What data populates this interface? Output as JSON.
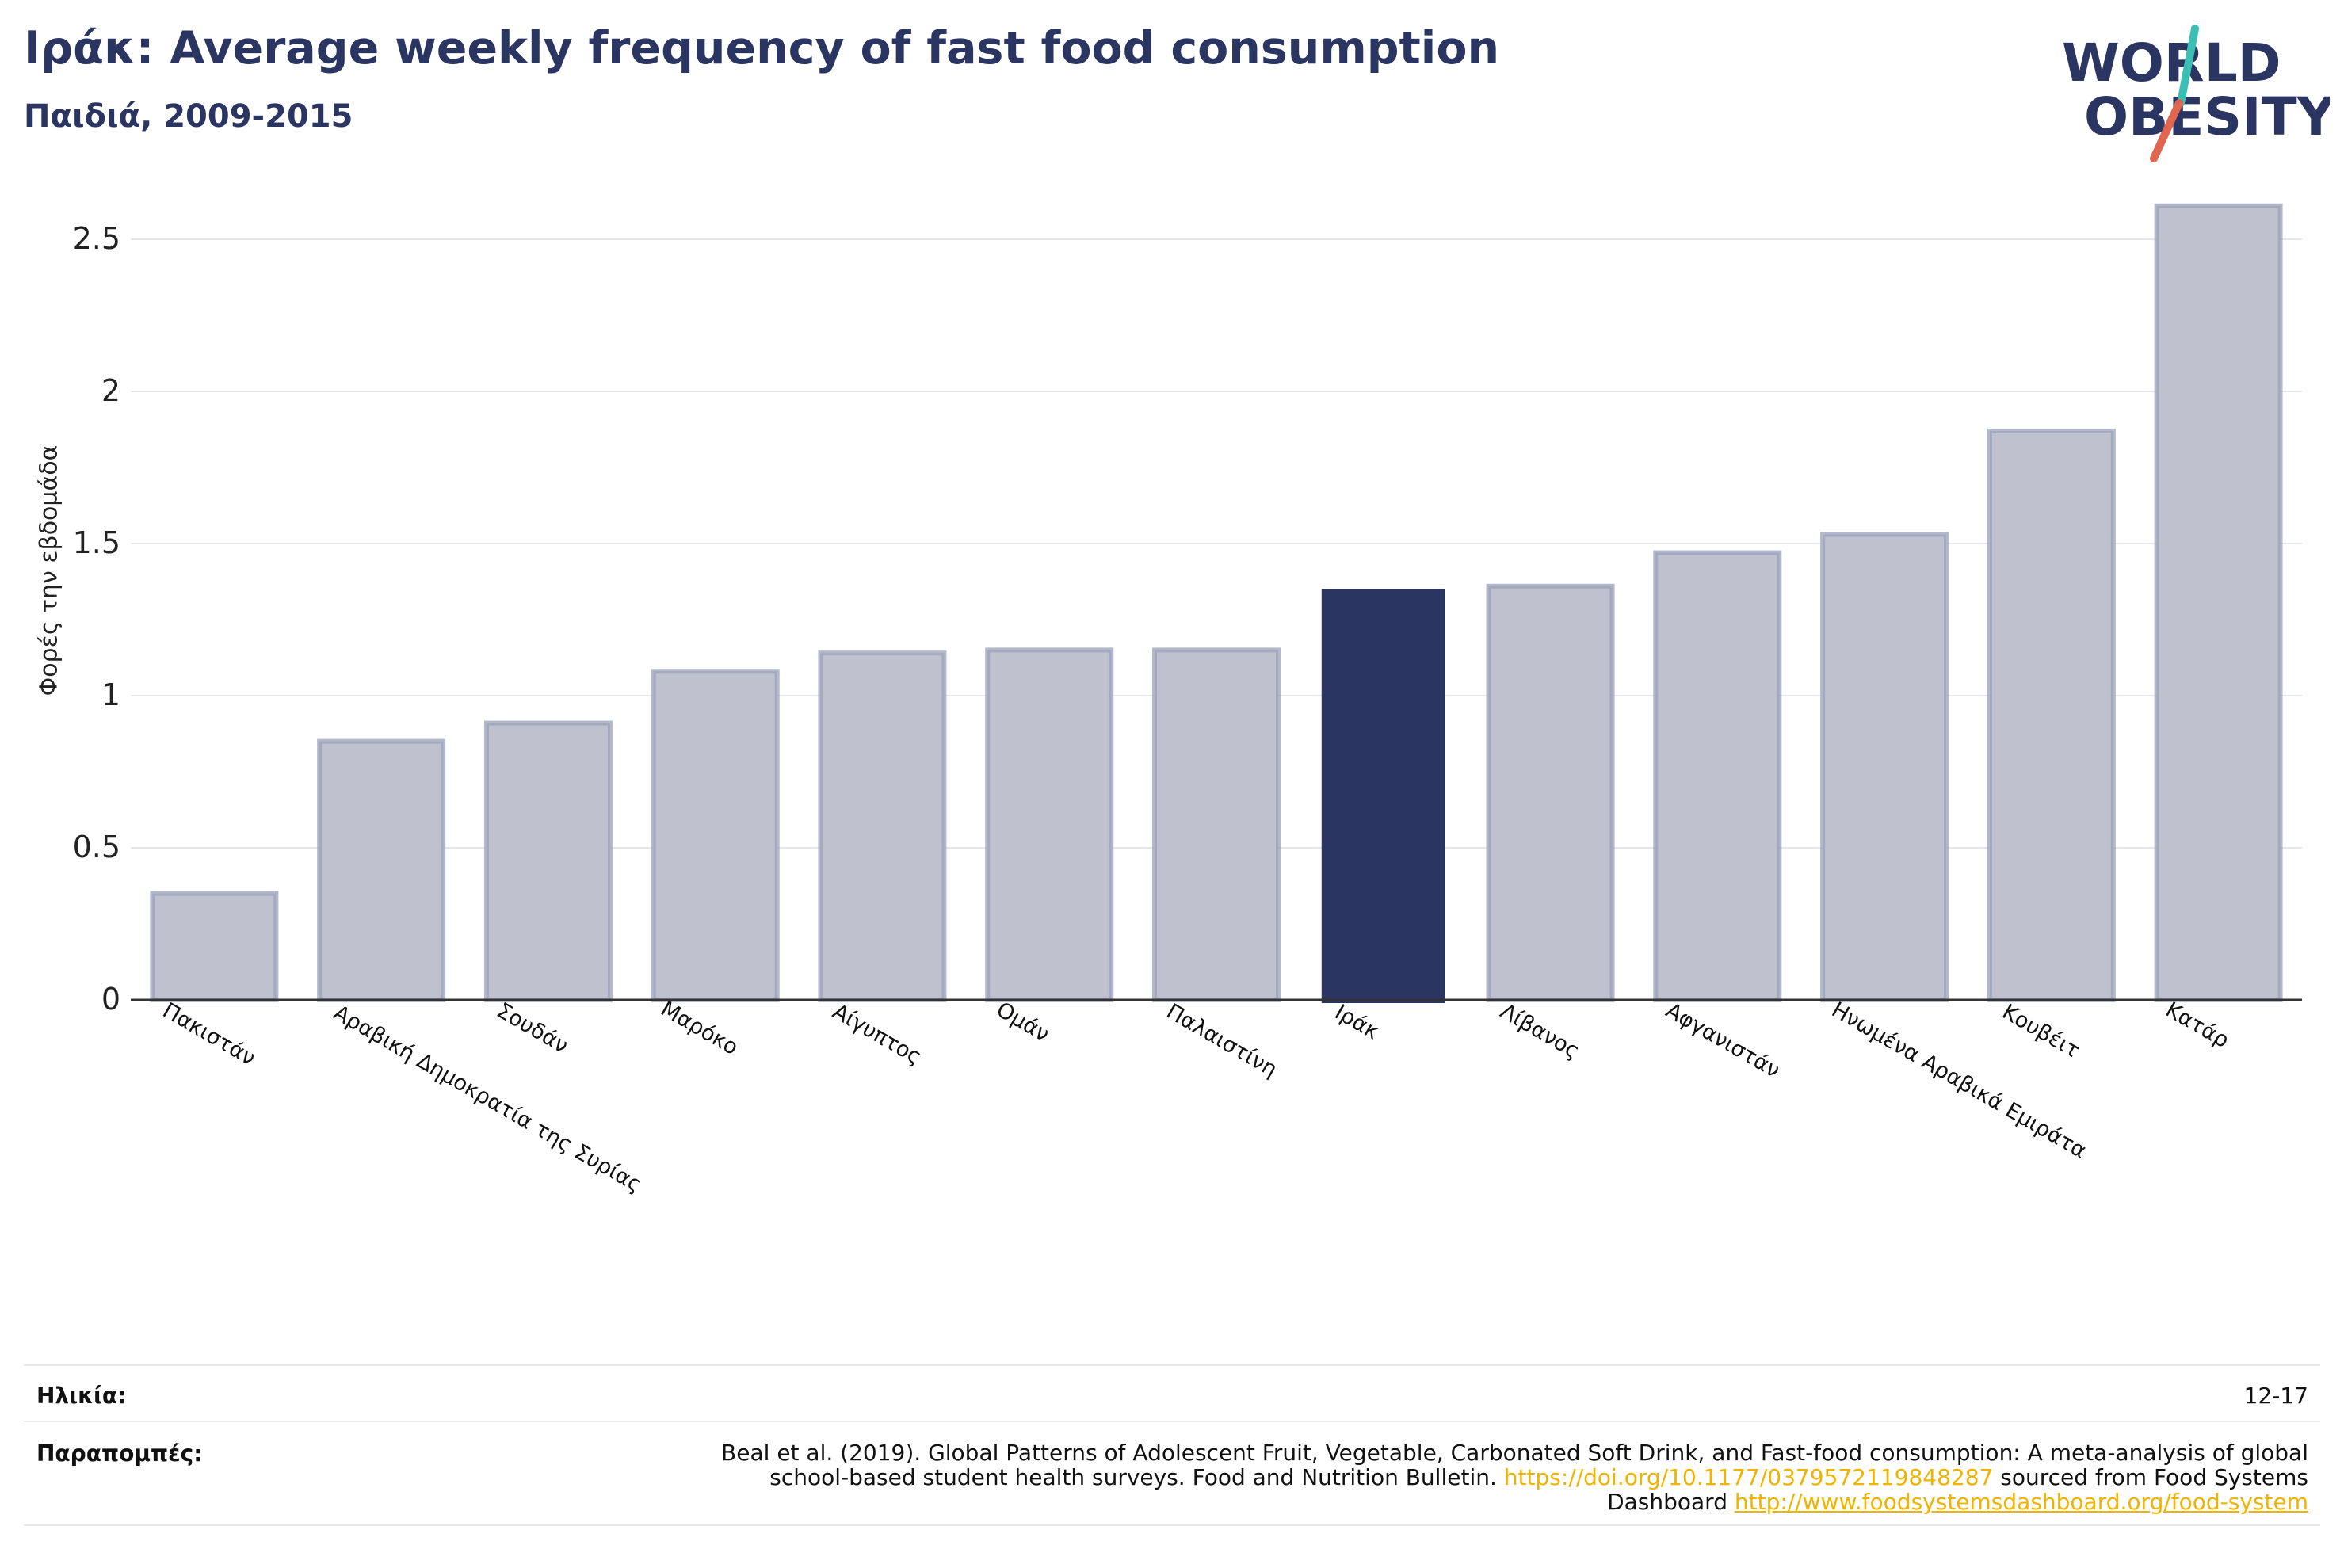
{
  "header": {
    "title": "Ιράκ: Average weekly frequency of fast food consumption",
    "subtitle": "Παιδιά, 2009-2015"
  },
  "logo": {
    "line1": "WORLD",
    "line2": "OBESITY"
  },
  "colors": {
    "highlight": "#2b3561",
    "bar_fill": "#bfc2ce",
    "bar_stroke": "#9aa0b8",
    "title": "#2b3561",
    "link": "#f0b400"
  },
  "chart_data": {
    "type": "bar",
    "title": "Ιράκ: Average weekly frequency of fast food consumption",
    "subtitle": "Παιδιά, 2009-2015",
    "ylabel": "Φορές την εβδομάδα",
    "xlabel": "",
    "ylim": [
      0,
      2.7
    ],
    "yticks": [
      0,
      0.5,
      1,
      1.5,
      2,
      2.5
    ],
    "ytick_labels": [
      "0",
      "0.5",
      "1",
      "1.5",
      "2",
      "2.5"
    ],
    "grid": true,
    "highlight": "Ιράκ",
    "categories": [
      "Πακιστάν",
      "Αραβική Δημοκρατία της Συρίας",
      "Σουδάν",
      "Μαρόκο",
      "Αίγυπτος",
      "Ομάν",
      "Παλαιστίνη",
      "Ιράκ",
      "Λίβανος",
      "Αφγανιστάν",
      "Ηνωμένα Αραβικά Εμιράτα",
      "Κουβέιτ",
      "Κατάρ"
    ],
    "values": [
      0.35,
      0.85,
      0.91,
      1.08,
      1.14,
      1.15,
      1.15,
      1.35,
      1.36,
      1.47,
      1.53,
      1.87,
      2.61
    ]
  },
  "footer": {
    "age_label": "Ηλικία:",
    "age_value": "12-17",
    "refs_label": "Παραπομπές:",
    "refs_text_1": "Beal et al. (2019). Global Patterns of Adolescent Fruit, Vegetable, Carbonated Soft Drink, and Fast-food consumption: A meta-analysis of global school-based student health surveys. Food and Nutrition Bulletin. ",
    "refs_link_1": "https://doi.org/10.1177/0379572119848287",
    "refs_text_2": " sourced from Food Systems Dashboard ",
    "refs_link_2": "http://www.foodsystemsdashboard.org/food-system"
  }
}
